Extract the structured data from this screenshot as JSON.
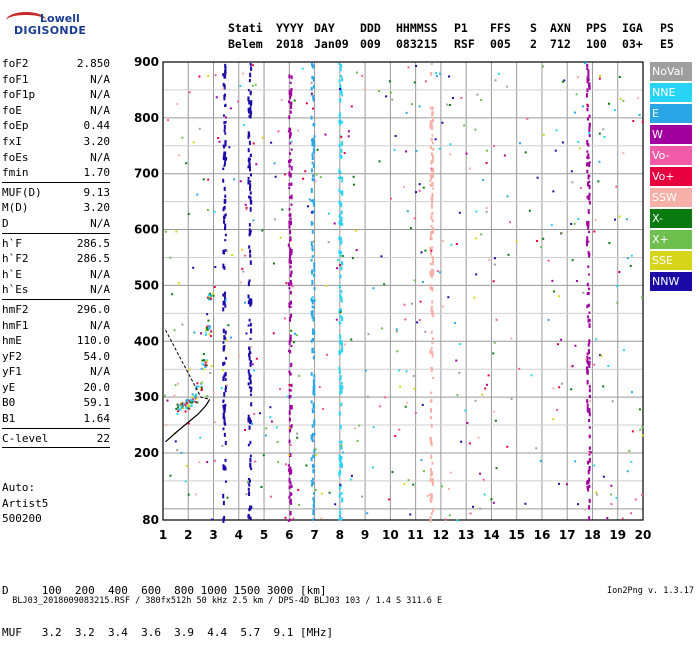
{
  "logo": {
    "line1": "Lowell",
    "line2": "DIGISONDE"
  },
  "header": {
    "cols": [
      {
        "k": "Stati",
        "v": "Belem"
      },
      {
        "k": "YYYY",
        "v": "2018"
      },
      {
        "k": "DAY",
        "v": "Jan09"
      },
      {
        "k": "DDD",
        "v": "009"
      },
      {
        "k": "HHMMSS",
        "v": "083215"
      },
      {
        "k": "P1",
        "v": "RSF"
      },
      {
        "k": "FFS",
        "v": "005"
      },
      {
        "k": "S",
        "v": "2"
      },
      {
        "k": "AXN",
        "v": "712"
      },
      {
        "k": "PPS",
        "v": "100"
      },
      {
        "k": "IGA",
        "v": "03+"
      },
      {
        "k": "PS",
        "v": "E5"
      }
    ]
  },
  "params": {
    "g1": [
      {
        "k": "foF2",
        "v": "2.850"
      },
      {
        "k": "foF1",
        "v": "N/A"
      },
      {
        "k": "foF1p",
        "v": "N/A"
      },
      {
        "k": "foE",
        "v": "N/A"
      },
      {
        "k": "foEp",
        "v": "0.44"
      },
      {
        "k": "fxI",
        "v": "3.20"
      },
      {
        "k": "foEs",
        "v": "N/A"
      },
      {
        "k": "fmin",
        "v": "1.70"
      }
    ],
    "g2": [
      {
        "k": "MUF(D)",
        "v": "9.13"
      },
      {
        "k": "M(D)",
        "v": "3.20"
      },
      {
        "k": "D",
        "v": "N/A"
      }
    ],
    "g3": [
      {
        "k": "h`F",
        "v": "286.5"
      },
      {
        "k": "h`F2",
        "v": "286.5"
      },
      {
        "k": "h`E",
        "v": "N/A"
      },
      {
        "k": "h`Es",
        "v": "N/A"
      }
    ],
    "g4": [
      {
        "k": "hmF2",
        "v": "296.0"
      },
      {
        "k": "hmF1",
        "v": "N/A"
      },
      {
        "k": "hmE",
        "v": "110.0"
      },
      {
        "k": "yF2",
        "v": "54.0"
      },
      {
        "k": "yF1",
        "v": "N/A"
      },
      {
        "k": "yE",
        "v": "20.0"
      },
      {
        "k": "B0",
        "v": "59.1"
      },
      {
        "k": "B1",
        "v": "1.64"
      }
    ],
    "g5": [
      {
        "k": "C-level",
        "v": "22"
      }
    ]
  },
  "auto": {
    "l1": "Auto:",
    "l2": "Artist5",
    "l3": "500200"
  },
  "legend": [
    {
      "label": "NoVal",
      "color": "#9e9e9e"
    },
    {
      "label": "NNE",
      "color": "#29d3f5"
    },
    {
      "label": "E",
      "color": "#2aa6e6"
    },
    {
      "label": "W",
      "color": "#a0009e"
    },
    {
      "label": "Vo-",
      "color": "#f05aa6"
    },
    {
      "label": "Vo+",
      "color": "#e8003e"
    },
    {
      "label": "SSW",
      "color": "#f6b0a8"
    },
    {
      "label": "X-",
      "color": "#0a7a10"
    },
    {
      "label": "X+",
      "color": "#6fbf4f"
    },
    {
      "label": "SSE",
      "color": "#d7d51a"
    },
    {
      "label": "NNW",
      "color": "#1c0aa6"
    }
  ],
  "bottom": {
    "d_line": "D     100  200  400  600  800 1000 1500 3000 [km]",
    "muf_line": "MUF   3.2  3.2  3.4  3.6  3.9  4.4  5.7  9.1 [MHz]"
  },
  "footer": {
    "file": "BLJ03_2018009083215.RSF / 380fx512h 50 kHz 2.5 km / DPS-4D BLJ03 103 / 1.4 S 311.6 E",
    "version": "Ion2Png v. 1.3.17"
  },
  "chart_data": {
    "type": "scatter",
    "title": "",
    "xlabel": "",
    "ylabel": "",
    "xlim": [
      1,
      20
    ],
    "ylim": [
      80,
      900
    ],
    "xticks": [
      1,
      2,
      3,
      4,
      5,
      6,
      7,
      8,
      9,
      10,
      11,
      12,
      13,
      14,
      15,
      16,
      17,
      18,
      19,
      20
    ],
    "yticks": [
      80,
      200,
      300,
      400,
      500,
      600,
      700,
      800,
      900
    ],
    "grid": true,
    "legend_position": "right",
    "vertical_streaks": [
      {
        "name": "NNW",
        "x": 3.4,
        "y": [
          80,
          900
        ]
      },
      {
        "name": "NNW",
        "x": 4.4,
        "y": [
          80,
          900
        ]
      },
      {
        "name": "W",
        "x": 6.0,
        "y": [
          80,
          900
        ]
      },
      {
        "name": "E",
        "x": 6.9,
        "y": [
          80,
          900
        ]
      },
      {
        "name": "NNE",
        "x": 8.0,
        "y": [
          80,
          900
        ]
      },
      {
        "name": "SSW",
        "x": 11.6,
        "y": [
          80,
          900
        ]
      },
      {
        "name": "W",
        "x": 17.8,
        "y": [
          80,
          900
        ]
      }
    ],
    "trace_points": [
      {
        "x": 1.6,
        "y": 280
      },
      {
        "x": 1.8,
        "y": 285
      },
      {
        "x": 2.0,
        "y": 290
      },
      {
        "x": 2.2,
        "y": 300
      },
      {
        "x": 2.4,
        "y": 320
      },
      {
        "x": 2.6,
        "y": 360
      },
      {
        "x": 2.75,
        "y": 420
      },
      {
        "x": 2.85,
        "y": 480
      }
    ],
    "profile_curve": [
      {
        "x": 1.1,
        "y": 220
      },
      {
        "x": 1.6,
        "y": 240
      },
      {
        "x": 2.0,
        "y": 255
      },
      {
        "x": 2.4,
        "y": 270
      },
      {
        "x": 2.7,
        "y": 285
      },
      {
        "x": 2.85,
        "y": 296
      }
    ]
  }
}
